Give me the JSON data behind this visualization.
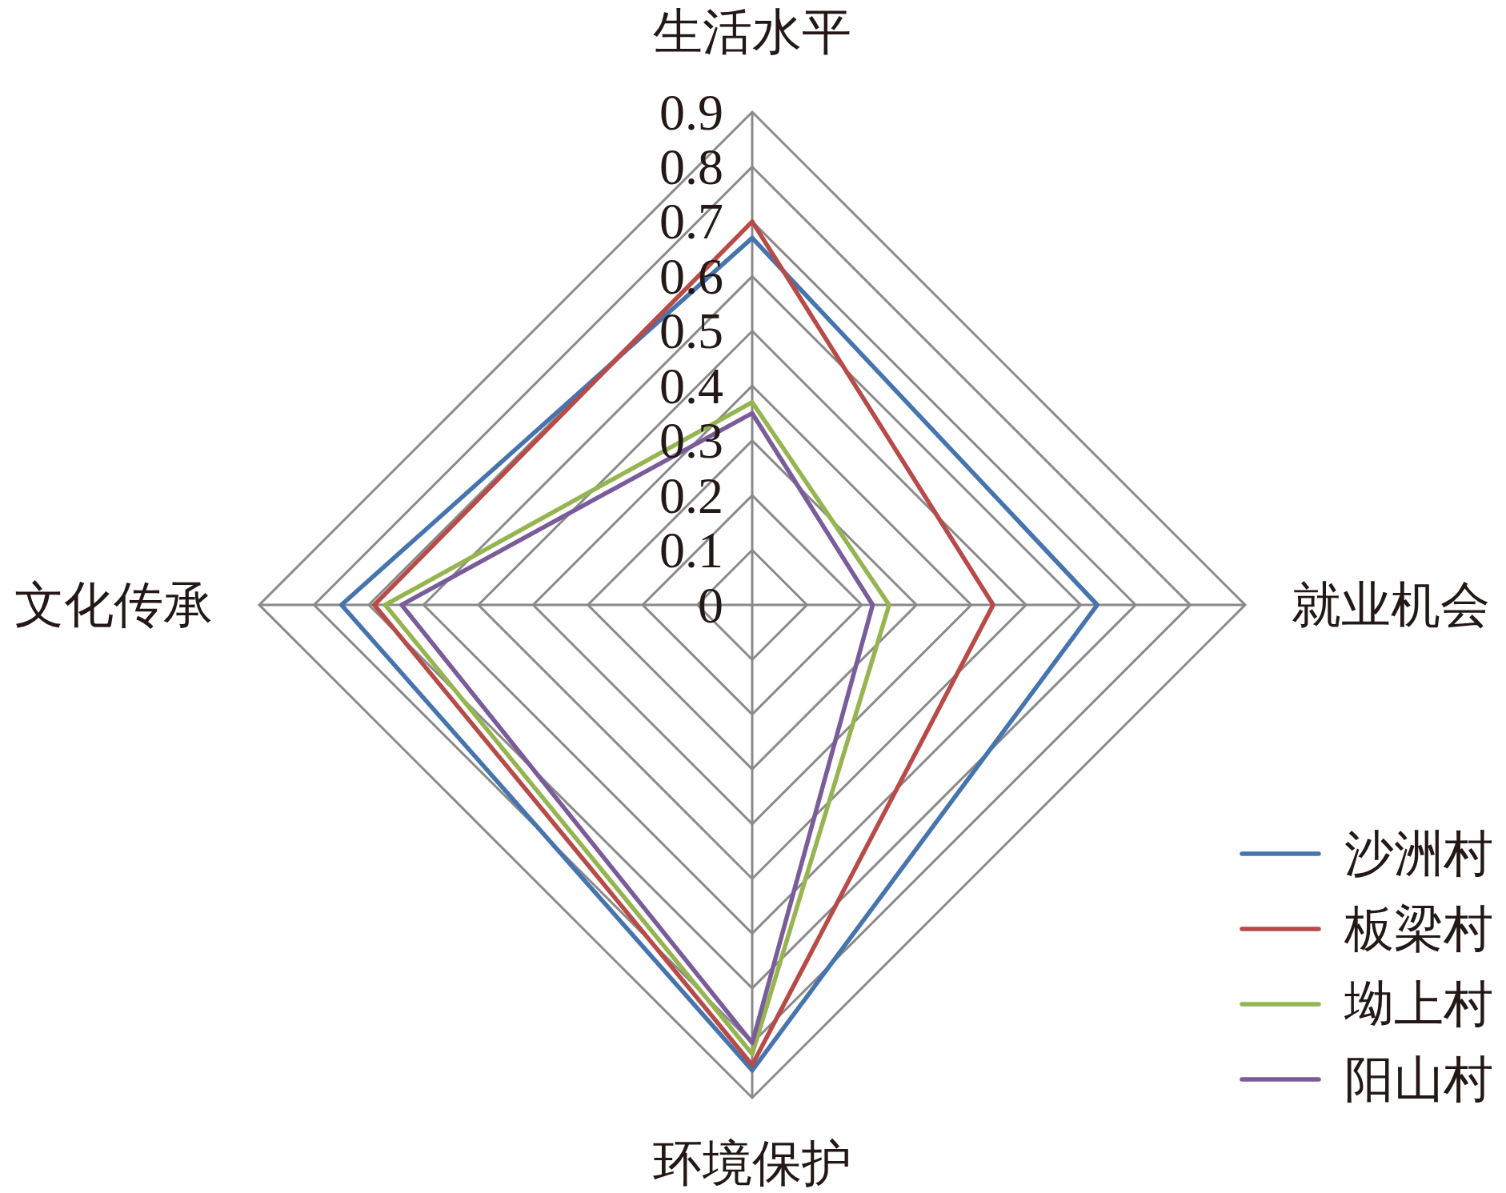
{
  "chart_data": {
    "type": "radar",
    "categories": [
      "生活水平",
      "就业机会",
      "环境保护",
      "文化传承"
    ],
    "series": [
      {
        "name": "沙洲村",
        "color": "#4674ae",
        "values": [
          0.67,
          0.63,
          0.85,
          0.75
        ]
      },
      {
        "name": "板梁村",
        "color": "#b84a47",
        "values": [
          0.7,
          0.44,
          0.84,
          0.69
        ]
      },
      {
        "name": "坳上村",
        "color": "#96b551",
        "values": [
          0.37,
          0.25,
          0.82,
          0.67
        ]
      },
      {
        "name": "阳山村",
        "color": "#7a5c9b",
        "values": [
          0.35,
          0.22,
          0.8,
          0.64
        ]
      }
    ],
    "ylim": [
      0,
      0.9
    ],
    "yticks": [
      0,
      0.1,
      0.2,
      0.3,
      0.4,
      0.5,
      0.6,
      0.7,
      0.8,
      0.9
    ],
    "grid": true,
    "legend": "bottom right"
  }
}
